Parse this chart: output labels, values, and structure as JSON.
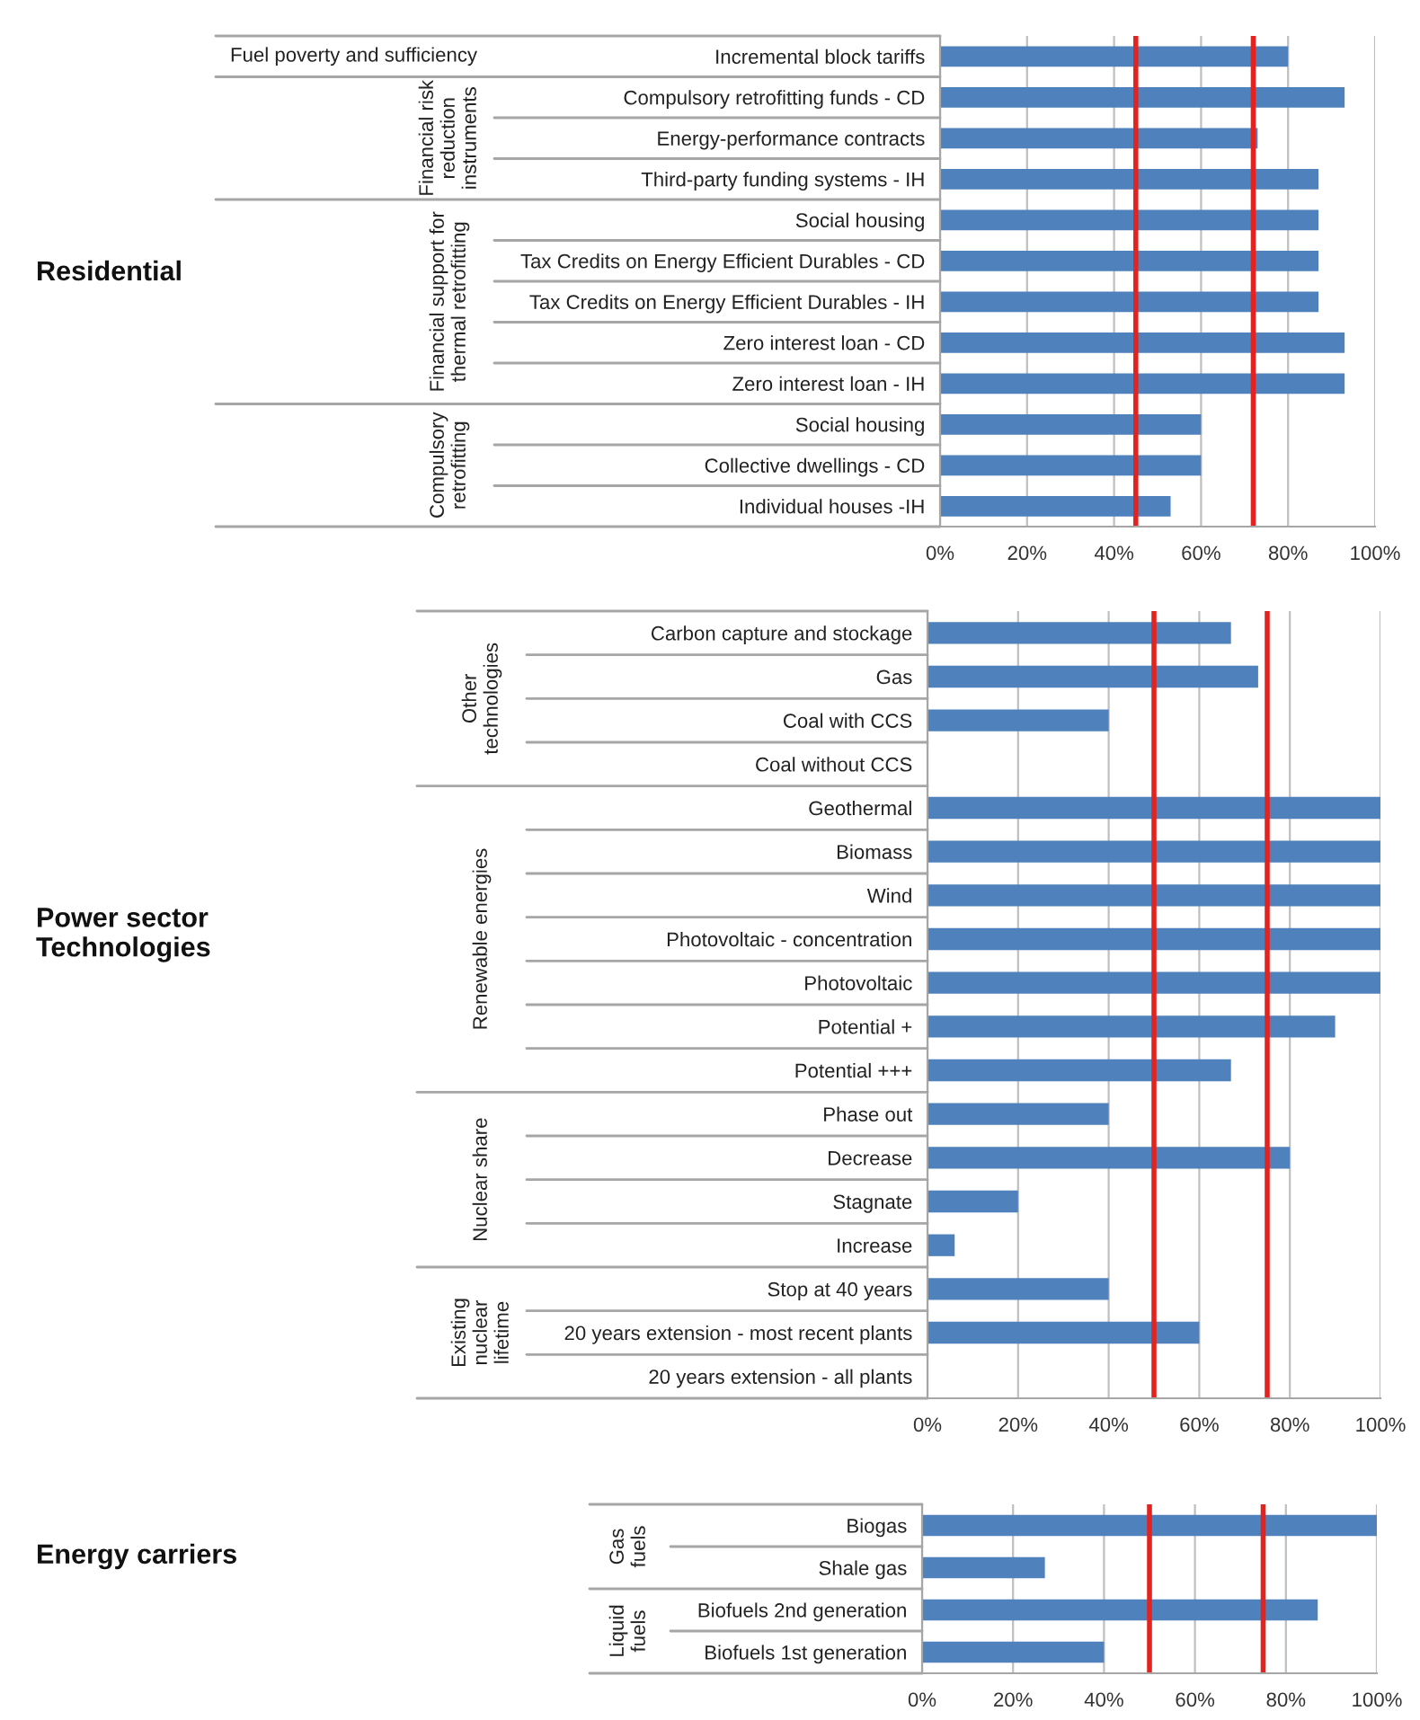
{
  "chart_data": [
    {
      "type": "bar",
      "orientation": "horizontal",
      "categories": [
        "Incremental block tariffs",
        "Compulsory retrofitting funds - CD",
        "Energy-performance contracts",
        "Third-party funding systems - IH",
        "Social housing",
        "Tax Credits on Energy Efficient Durables - CD",
        "Tax Credits on Energy Efficient Durables - IH",
        "Zero interest loan - CD",
        "Zero interest loan - IH",
        "Social housing",
        "Collective dwellings - CD",
        "Individual houses -IH"
      ],
      "values": [
        80,
        93,
        73,
        87,
        87,
        87,
        87,
        93,
        93,
        60,
        60,
        53
      ],
      "color": "#4f81bd",
      "xlim": [
        0,
        100
      ],
      "xticks": [
        {
          "value": 0,
          "label": "0%"
        },
        {
          "value": 20,
          "label": "20%"
        },
        {
          "value": 40,
          "label": "40%"
        },
        {
          "value": 60,
          "label": "60%"
        },
        {
          "value": 80,
          "label": "80%"
        },
        {
          "value": 100,
          "label": "100%"
        }
      ],
      "grid": "x",
      "ref_lines": [
        {
          "axis": "x",
          "value": 45,
          "color": "#e3231f"
        },
        {
          "axis": "x",
          "value": 72,
          "color": "#e3231f"
        }
      ],
      "annotations": [
        "Residential",
        "Fuel poverty and sufficiency",
        "Financial risk\nreduction\ninstruments",
        "Financial support for\nthermal retrofitting",
        "Compulsory\nretrofitting"
      ]
    },
    {
      "type": "bar",
      "orientation": "horizontal",
      "categories": [
        "Carbon capture and stockage",
        "Gas",
        "Coal with CCS",
        "Coal without CCS",
        "Geothermal",
        "Biomass",
        "Wind",
        "Photovoltaic - concentration",
        "Photovoltaic",
        "Potential +",
        "Potential +++",
        "Phase out",
        "Decrease",
        "Stagnate",
        "Increase",
        "Stop at 40 years",
        "20 years extension - most recent plants",
        "20 years extension - all plants"
      ],
      "values": [
        67,
        73,
        40,
        0,
        100,
        100,
        100,
        100,
        100,
        90,
        67,
        40,
        80,
        20,
        6,
        40,
        60,
        0
      ],
      "color": "#4f81bd",
      "xlim": [
        0,
        100
      ],
      "xticks": [
        {
          "value": 0,
          "label": "0%"
        },
        {
          "value": 20,
          "label": "20%"
        },
        {
          "value": 40,
          "label": "40%"
        },
        {
          "value": 60,
          "label": "60%"
        },
        {
          "value": 80,
          "label": "80%"
        },
        {
          "value": 100,
          "label": "100%"
        }
      ],
      "grid": "x",
      "ref_lines": [
        {
          "axis": "x",
          "value": 50,
          "color": "#e3231f"
        },
        {
          "axis": "x",
          "value": 75,
          "color": "#e3231f"
        }
      ],
      "annotations": [
        "Power sector\nTechnologies",
        "Other\ntechnologies",
        "Renewable energies",
        "Nuclear share",
        "Existing\nnuclear\nlifetime"
      ]
    },
    {
      "type": "bar",
      "orientation": "horizontal",
      "categories": [
        "Biogas",
        "Shale gas",
        "Biofuels 2nd generation",
        "Biofuels 1st generation"
      ],
      "values": [
        100,
        27,
        87,
        40
      ],
      "color": "#4f81bd",
      "xlim": [
        0,
        100
      ],
      "xticks": [
        {
          "value": 0,
          "label": "0%"
        },
        {
          "value": 20,
          "label": "20%"
        },
        {
          "value": 40,
          "label": "40%"
        },
        {
          "value": 60,
          "label": "60%"
        },
        {
          "value": 80,
          "label": "80%"
        },
        {
          "value": 100,
          "label": "100%"
        }
      ],
      "grid": "x",
      "ref_lines": [
        {
          "axis": "x",
          "value": 50,
          "color": "#e3231f"
        },
        {
          "axis": "x",
          "value": 75,
          "color": "#e3231f"
        }
      ],
      "annotations": [
        "Energy carriers",
        "Gas\nfuels",
        "Liquid\nfuels"
      ]
    }
  ]
}
